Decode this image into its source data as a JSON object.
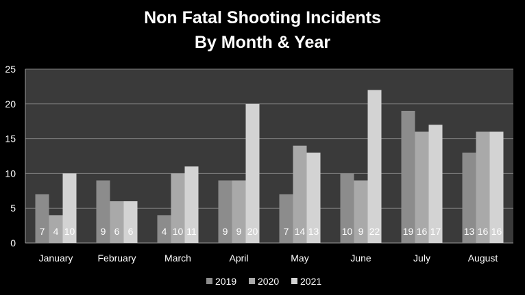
{
  "chart_data": {
    "type": "bar",
    "title": "Non Fatal Shooting Incidents",
    "subtitle": "By Month & Year",
    "categories": [
      "January",
      "February",
      "March",
      "April",
      "May",
      "June",
      "July",
      "August"
    ],
    "series": [
      {
        "name": "2019",
        "values": [
          7,
          9,
          4,
          9,
          7,
          10,
          19,
          13
        ],
        "color": "#8c8c8c"
      },
      {
        "name": "2020",
        "values": [
          4,
          6,
          10,
          9,
          14,
          9,
          16,
          16
        ],
        "color": "#a9a9a9"
      },
      {
        "name": "2021",
        "values": [
          10,
          6,
          11,
          20,
          13,
          22,
          17,
          16
        ],
        "color": "#d3d3d3"
      }
    ],
    "ylim": [
      0,
      25
    ],
    "yticks": [
      0,
      5,
      10,
      15,
      20,
      25
    ],
    "grid": true,
    "legend": "bottom",
    "data_labels": true,
    "background": "#000000",
    "plot_background": "#3a3a3a",
    "gridline_color": "#7f7f7f",
    "text_color": "#ffffff"
  }
}
